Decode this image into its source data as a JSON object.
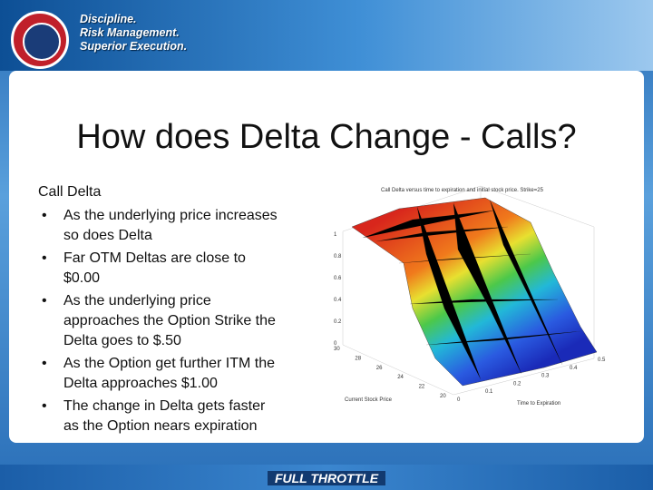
{
  "header": {
    "tagline": [
      "Discipline.",
      "Risk Management.",
      "Superior Execution."
    ]
  },
  "slide": {
    "title": "How does Delta Change - Calls?",
    "heading": "Call Delta",
    "bullets": [
      "As the underlying price increases so does Delta",
      "Far OTM Deltas are close to $0.00",
      "As the underlying price approaches the Option Strike the Delta goes to $.50",
      "As the Option get further ITM the Delta approaches $1.00",
      "The change in Delta gets faster as the Option nears expiration"
    ]
  },
  "figure": {
    "title": "Call Delta versus time to expiration and initial stock price. Strike=25",
    "z_ticks": [
      "1",
      "0.8",
      "0.6",
      "0.4",
      "0.2",
      "0"
    ],
    "stock_ticks": [
      "30",
      "28",
      "26",
      "24",
      "22",
      "20"
    ],
    "time_ticks": [
      "0",
      "0.1",
      "0.2",
      "0.3",
      "0.4",
      "0.5"
    ],
    "x_label": "Current Stock Price",
    "y_label": "Time to Expiration"
  },
  "footer": {
    "brand": "FULL THROTTLE"
  }
}
